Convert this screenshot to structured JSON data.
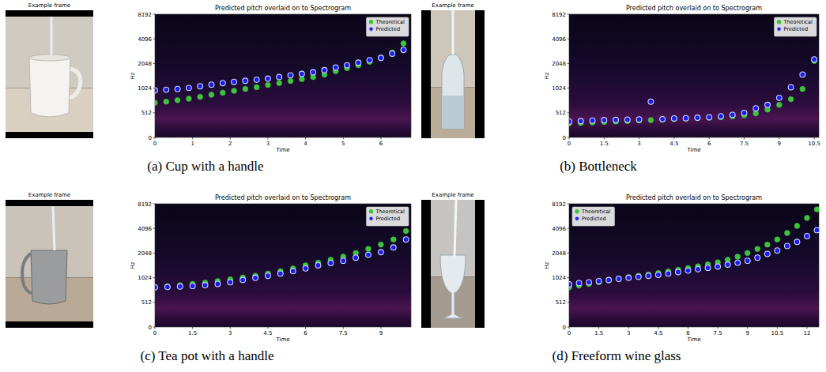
{
  "chart_data": [
    {
      "type": "scatter",
      "image_title": "Example frame",
      "title": "Predicted pitch overlaid on to Spectrogram",
      "x_label": "Time",
      "y_label": "Hz",
      "caption": "(a) Cup with a handle",
      "log": "y",
      "legend": "upper right",
      "xlim": [
        0,
        6.8
      ],
      "ylim": [
        0,
        8192
      ],
      "xticks": [
        0,
        1,
        2,
        3,
        4,
        5,
        6
      ],
      "yticks": [
        0,
        512,
        1024,
        2048,
        4096,
        8192
      ],
      "series": [
        {
          "name": "Theoretical",
          "color": "#3cc43c",
          "marker": "circle",
          "x": [
            0,
            0.3,
            0.6,
            0.9,
            1.2,
            1.5,
            1.8,
            2.1,
            2.4,
            2.7,
            3.0,
            3.3,
            3.6,
            3.9,
            4.2,
            4.5,
            4.8,
            5.1,
            5.4,
            5.7,
            6.0,
            6.3,
            6.6
          ],
          "values": [
            680,
            700,
            730,
            760,
            800,
            850,
            900,
            950,
            1000,
            1050,
            1120,
            1180,
            1250,
            1320,
            1400,
            1500,
            1650,
            1800,
            1950,
            2150,
            2400,
            2800,
            3600
          ]
        },
        {
          "name": "Predicted",
          "color": "#1c1cf0",
          "marker": "circle",
          "x": [
            0,
            0.3,
            0.6,
            0.9,
            1.2,
            1.5,
            1.8,
            2.1,
            2.4,
            2.7,
            3.0,
            3.3,
            3.6,
            3.9,
            4.2,
            4.5,
            4.8,
            5.1,
            5.4,
            5.7,
            6.0,
            6.3,
            6.6
          ],
          "values": [
            960,
            980,
            1000,
            1030,
            1080,
            1130,
            1180,
            1220,
            1260,
            1300,
            1340,
            1400,
            1470,
            1530,
            1600,
            1700,
            1830,
            1950,
            2100,
            2250,
            2400,
            2700,
            3000
          ]
        }
      ]
    },
    {
      "type": "scatter",
      "image_title": "Example frame",
      "title": "Predicted pitch overlaid on to Spectrogram",
      "x_label": "Time",
      "y_label": "Hz",
      "caption": "(b) Bottleneck",
      "log": "y",
      "legend": "upper right",
      "xlim": [
        0,
        10.7
      ],
      "ylim": [
        0,
        8192
      ],
      "xticks": [
        0,
        1.5,
        3,
        4.5,
        6,
        7.5,
        9,
        10.5
      ],
      "yticks": [
        0,
        512,
        1024,
        2048,
        4096,
        8192
      ],
      "series": [
        {
          "name": "Theoretical",
          "color": "#3cc43c",
          "marker": "circle",
          "x": [
            0,
            0.5,
            1,
            1.5,
            2,
            2.5,
            3,
            3.5,
            4,
            4.5,
            5,
            5.5,
            6,
            6.5,
            7,
            7.5,
            8,
            8.5,
            9,
            9.5,
            10,
            10.5
          ],
          "values": [
            290,
            300,
            310,
            320,
            330,
            340,
            350,
            360,
            370,
            380,
            390,
            400,
            410,
            420,
            440,
            460,
            500,
            560,
            640,
            750,
            1000,
            2200
          ]
        },
        {
          "name": "Predicted",
          "color": "#1c1cf0",
          "marker": "circle",
          "x": [
            0,
            0.5,
            1,
            1.5,
            2,
            2.5,
            3,
            3.5,
            4,
            4.5,
            5,
            5.5,
            6,
            6.5,
            7,
            7.5,
            8,
            8.5,
            9,
            9.5,
            10,
            10.5
          ],
          "values": [
            330,
            340,
            350,
            360,
            365,
            370,
            375,
            700,
            380,
            395,
            400,
            410,
            420,
            440,
            470,
            510,
            580,
            640,
            780,
            1050,
            1500,
            2300
          ]
        }
      ]
    },
    {
      "type": "scatter",
      "image_title": "Example frame",
      "title": "Predicted pitch overlaid on to Spectrogram",
      "x_label": "Time",
      "y_label": "Hz",
      "caption": "(c) Tea pot with a handle",
      "log": "y",
      "legend": "upper right",
      "xlim": [
        0,
        10.2
      ],
      "ylim": [
        0,
        8192
      ],
      "xticks": [
        0,
        1.5,
        3,
        4.5,
        6,
        7.5,
        9
      ],
      "yticks": [
        0,
        512,
        1024,
        2048,
        4096,
        8192
      ],
      "series": [
        {
          "name": "Theoretical",
          "color": "#3cc43c",
          "marker": "circle",
          "x": [
            0,
            0.5,
            1,
            1.5,
            2,
            2.5,
            3,
            3.5,
            4,
            4.5,
            5,
            5.5,
            6,
            6.5,
            7,
            7.5,
            8,
            8.5,
            9,
            9.5,
            10
          ],
          "values": [
            790,
            800,
            830,
            860,
            890,
            930,
            980,
            1030,
            1080,
            1150,
            1230,
            1330,
            1450,
            1560,
            1700,
            1850,
            2050,
            2300,
            2600,
            3000,
            3800
          ]
        },
        {
          "name": "Predicted",
          "color": "#1c1cf0",
          "marker": "circle",
          "x": [
            0,
            0.5,
            1,
            1.5,
            2,
            2.5,
            3,
            3.5,
            4,
            4.5,
            5,
            5.5,
            6,
            6.5,
            7,
            7.5,
            8,
            8.5,
            9,
            9.5,
            10
          ],
          "values": [
            780,
            790,
            800,
            810,
            830,
            860,
            900,
            960,
            1020,
            1080,
            1150,
            1230,
            1330,
            1450,
            1550,
            1650,
            1800,
            1950,
            2100,
            2400,
            3000
          ]
        }
      ]
    },
    {
      "type": "scatter",
      "image_title": "Example frame",
      "title": "Predicted pitch overlaid on to Spectrogram",
      "x_label": "Time",
      "y_label": "Hz",
      "caption": "(d) Freeform wine glass",
      "log": "y",
      "legend": "upper left",
      "xlim": [
        0,
        12.6
      ],
      "ylim": [
        0,
        8192
      ],
      "xticks": [
        0,
        1.5,
        3,
        4.5,
        6,
        7.5,
        9,
        10.5,
        12
      ],
      "yticks": [
        0,
        512,
        1024,
        2048,
        4096,
        8192
      ],
      "series": [
        {
          "name": "Theoretical",
          "color": "#3cc43c",
          "marker": "circle",
          "x": [
            0,
            0.5,
            1,
            1.5,
            2,
            2.5,
            3,
            3.5,
            4,
            4.5,
            5,
            5.5,
            6,
            6.5,
            7,
            7.5,
            8,
            8.5,
            9,
            9.5,
            10,
            10.5,
            11,
            11.5,
            12,
            12.5
          ],
          "values": [
            780,
            820,
            860,
            900,
            950,
            1000,
            1040,
            1080,
            1120,
            1170,
            1220,
            1280,
            1340,
            1410,
            1490,
            1580,
            1700,
            1850,
            2050,
            2300,
            2600,
            3000,
            3600,
            4400,
            5500,
            7000
          ]
        },
        {
          "name": "Predicted",
          "color": "#1c1cf0",
          "marker": "circle",
          "x": [
            0,
            0.5,
            1,
            1.5,
            2,
            2.5,
            3,
            3.5,
            4,
            4.5,
            5,
            5.5,
            6,
            6.5,
            7,
            7.5,
            8,
            8.5,
            9,
            9.5,
            10,
            10.5,
            11,
            11.5,
            12,
            12.5
          ],
          "values": [
            850,
            880,
            900,
            930,
            960,
            990,
            1020,
            1050,
            1080,
            1110,
            1150,
            1200,
            1250,
            1300,
            1350,
            1400,
            1480,
            1560,
            1650,
            1800,
            2000,
            2200,
            2500,
            2800,
            3300,
            3900
          ]
        }
      ]
    }
  ]
}
